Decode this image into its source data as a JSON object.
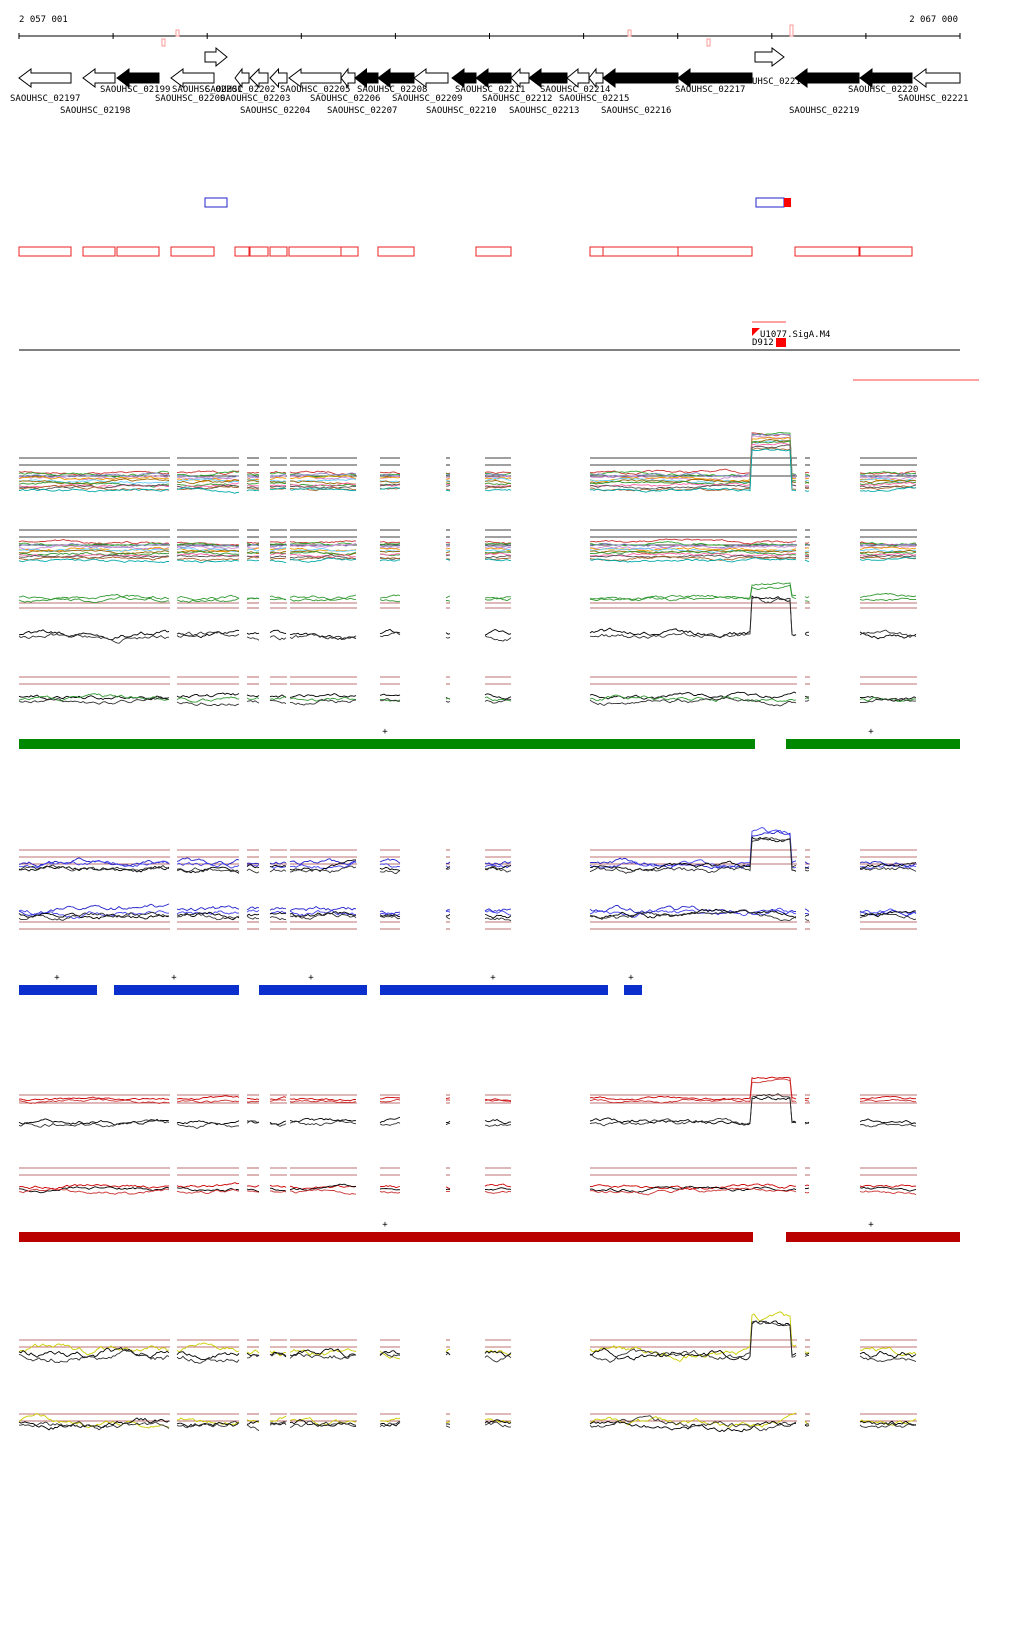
{
  "header": {
    "start": "2 057 001",
    "end": "2 067 000"
  },
  "genes": [
    "SAOUHSC_02197",
    "SAOUHSC_02198",
    "SAOUHSC_02199",
    "SAOUHSC_02200",
    "SAOUHSC_02201",
    "SAOUHSC_02202",
    "SAOUHSC_02203",
    "SAOUHSC_02204",
    "SAOUHSC_02205",
    "SAOUHSC_02206",
    "SAOUHSC_02207",
    "SAOUHSC_02208",
    "SAOUHSC_02209",
    "SAOUHSC_02210",
    "SAOUHSC_02211",
    "SAOUHSC_02212",
    "SAOUHSC_02213",
    "SAOUHSC_02214",
    "SAOUHSC_02215",
    "SAOUHSC_02216",
    "SAOUHSC_02217",
    "UHSC_0221",
    "SAOUHSC_02219",
    "SAOUHSC_02220",
    "SAOUHSC_02221"
  ],
  "features": {
    "promoter": "U1077.SigA.M4",
    "site": "D912"
  },
  "segment_tracks": {
    "green": [
      "+",
      "+"
    ],
    "blue": [
      "+",
      "+",
      "+",
      "+",
      "+"
    ],
    "red": [
      "+",
      "+"
    ]
  }
}
